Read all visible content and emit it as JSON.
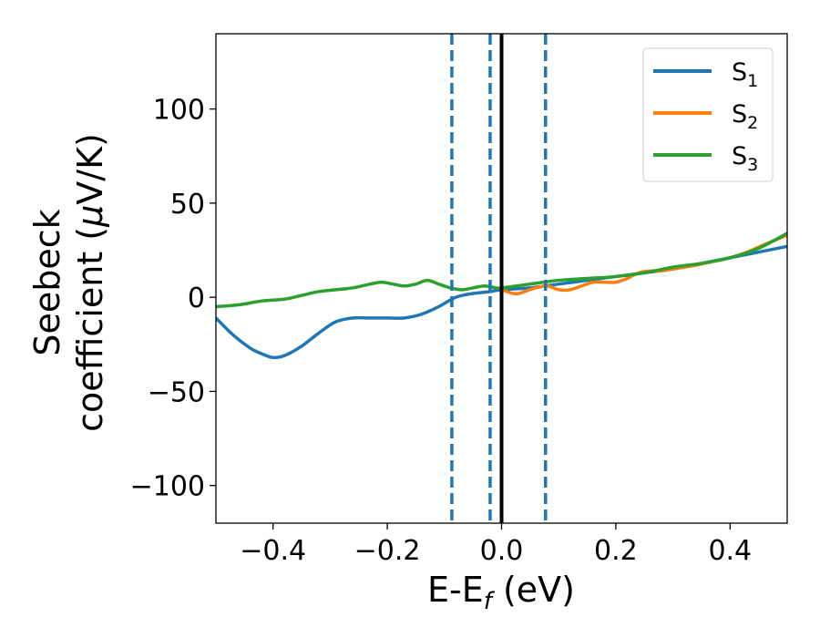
{
  "chart_data": {
    "type": "line",
    "title": "",
    "xlabel": {
      "main": "E-E",
      "sub": "f",
      "unit": " (eV)"
    },
    "ylabel": {
      "line1": "Seebeck",
      "line2": "coefficient  (",
      "mu": "μ",
      "unit": "V/K)"
    },
    "xlim": [
      -0.5,
      0.5
    ],
    "ylim": [
      -120,
      140
    ],
    "xticks": [
      -0.4,
      -0.2,
      0.0,
      0.2,
      0.4
    ],
    "xtick_labels": [
      "−0.4",
      "−0.2",
      "0.0",
      "0.2",
      "0.4"
    ],
    "yticks": [
      -100,
      -50,
      0,
      50,
      100
    ],
    "ytick_labels": [
      "−100",
      "−50",
      "0",
      "50",
      "100"
    ],
    "grid": false,
    "legend_position": "top-right",
    "series": [
      {
        "name": "S",
        "sub": "1",
        "color": "#1f77b4",
        "x": [
          -0.5,
          -0.47,
          -0.44,
          -0.42,
          -0.4,
          -0.38,
          -0.35,
          -0.32,
          -0.29,
          -0.26,
          -0.23,
          -0.2,
          -0.17,
          -0.14,
          -0.11,
          -0.08,
          -0.05,
          -0.02,
          0.0,
          0.05,
          0.1,
          0.15,
          0.2,
          0.25,
          0.3,
          0.35,
          0.4,
          0.45,
          0.5
        ],
        "y": [
          -11,
          -20,
          -27,
          -30,
          -32,
          -31,
          -26,
          -19,
          -13,
          -11,
          -11,
          -11,
          -11,
          -9,
          -5,
          0,
          2,
          3,
          4,
          5,
          7,
          9,
          11,
          13,
          15,
          18,
          21,
          24,
          27
        ]
      },
      {
        "name": "S",
        "sub": "2",
        "color": "#ff7f0e",
        "x": [
          0.0,
          0.01,
          0.02,
          0.03,
          0.04,
          0.06,
          0.08,
          0.1,
          0.12,
          0.14,
          0.16,
          0.18,
          0.2,
          0.22,
          0.24,
          0.26,
          0.28,
          0.3,
          0.32,
          0.34,
          0.37,
          0.4,
          0.43,
          0.46,
          0.5
        ],
        "y": [
          4,
          3,
          2,
          2,
          3,
          5,
          6,
          4,
          4,
          6,
          8,
          8,
          8,
          10,
          13,
          14,
          14,
          15,
          16,
          17,
          19,
          21,
          24,
          28,
          33
        ]
      },
      {
        "name": "S",
        "sub": "3",
        "color": "#2ca02c",
        "x": [
          -0.5,
          -0.46,
          -0.42,
          -0.38,
          -0.35,
          -0.32,
          -0.29,
          -0.26,
          -0.23,
          -0.21,
          -0.19,
          -0.17,
          -0.15,
          -0.13,
          -0.11,
          -0.09,
          -0.07,
          -0.05,
          -0.03,
          -0.01,
          0.0,
          0.05,
          0.1,
          0.15,
          0.2,
          0.25,
          0.3,
          0.35,
          0.4,
          0.45,
          0.5
        ],
        "y": [
          -5,
          -4,
          -2,
          -1,
          1,
          3,
          4,
          5,
          7,
          8,
          7,
          6,
          7,
          9,
          7,
          5,
          4,
          5,
          6,
          5,
          5,
          7,
          9,
          10,
          11,
          13,
          16,
          18,
          21,
          26,
          34
        ]
      }
    ],
    "vlines": [
      {
        "x": -0.087,
        "style": "dashed",
        "color": "#1f77b4"
      },
      {
        "x": -0.02,
        "style": "dashed",
        "color": "#1f77b4"
      },
      {
        "x": 0.0,
        "style": "solid",
        "color": "#000000"
      },
      {
        "x": 0.077,
        "style": "dashed",
        "color": "#1f77b4"
      }
    ]
  }
}
